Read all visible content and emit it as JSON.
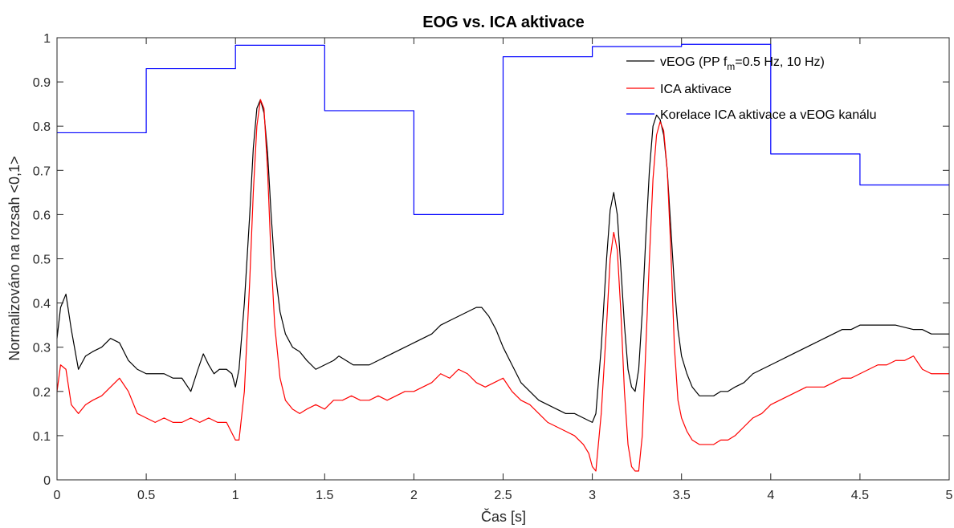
{
  "chart_data": {
    "type": "line",
    "title": "EOG vs. ICA aktivace",
    "xlabel": "Čas [s]",
    "ylabel": "Normalizováno na rozsah <0,1>",
    "xlim": [
      0,
      5
    ],
    "ylim": [
      0,
      1
    ],
    "xticks": [
      0,
      0.5,
      1,
      1.5,
      2,
      2.5,
      3,
      3.5,
      4,
      4.5,
      5
    ],
    "xtick_labels": [
      "0",
      "0.5",
      "1",
      "1.5",
      "2",
      "2.5",
      "3",
      "3.5",
      "4",
      "4.5",
      "5"
    ],
    "yticks": [
      0,
      0.1,
      0.2,
      0.3,
      0.4,
      0.5,
      0.6,
      0.7,
      0.8,
      0.9,
      1
    ],
    "ytick_labels": [
      "0",
      "0.1",
      "0.2",
      "0.3",
      "0.4",
      "0.5",
      "0.6",
      "0.7",
      "0.8",
      "0.9",
      "1"
    ],
    "grid": false,
    "legend_position": "top-right",
    "series": [
      {
        "name": "vEOG (PP f",
        "name_subscript": "m",
        "name_suffix": "=0.5 Hz, 10 Hz)",
        "color": "#000000",
        "style": "line",
        "x": [
          0,
          0.02,
          0.05,
          0.08,
          0.12,
          0.16,
          0.2,
          0.25,
          0.3,
          0.35,
          0.4,
          0.45,
          0.5,
          0.55,
          0.6,
          0.65,
          0.7,
          0.75,
          0.79,
          0.82,
          0.85,
          0.88,
          0.91,
          0.95,
          0.98,
          1.0,
          1.02,
          1.05,
          1.08,
          1.1,
          1.12,
          1.14,
          1.16,
          1.18,
          1.2,
          1.22,
          1.25,
          1.28,
          1.32,
          1.36,
          1.4,
          1.45,
          1.5,
          1.55,
          1.58,
          1.62,
          1.66,
          1.7,
          1.75,
          1.8,
          1.85,
          1.9,
          1.95,
          2.0,
          2.05,
          2.1,
          2.15,
          2.2,
          2.25,
          2.3,
          2.35,
          2.38,
          2.42,
          2.46,
          2.5,
          2.55,
          2.6,
          2.65,
          2.7,
          2.75,
          2.8,
          2.85,
          2.9,
          2.95,
          3.0,
          3.02,
          3.05,
          3.08,
          3.1,
          3.12,
          3.14,
          3.16,
          3.18,
          3.2,
          3.22,
          3.24,
          3.26,
          3.28,
          3.3,
          3.32,
          3.34,
          3.36,
          3.38,
          3.4,
          3.42,
          3.44,
          3.46,
          3.48,
          3.5,
          3.53,
          3.56,
          3.6,
          3.64,
          3.68,
          3.72,
          3.76,
          3.8,
          3.85,
          3.9,
          3.95,
          4.0,
          4.05,
          4.1,
          4.15,
          4.2,
          4.25,
          4.3,
          4.35,
          4.4,
          4.45,
          4.5,
          4.55,
          4.6,
          4.65,
          4.7,
          4.75,
          4.8,
          4.85,
          4.9,
          4.95,
          5.0
        ],
        "values": [
          0.32,
          0.39,
          0.42,
          0.34,
          0.25,
          0.28,
          0.29,
          0.3,
          0.32,
          0.31,
          0.27,
          0.25,
          0.24,
          0.24,
          0.24,
          0.23,
          0.23,
          0.2,
          0.25,
          0.285,
          0.26,
          0.24,
          0.25,
          0.25,
          0.24,
          0.21,
          0.25,
          0.4,
          0.6,
          0.75,
          0.84,
          0.86,
          0.83,
          0.74,
          0.6,
          0.48,
          0.38,
          0.33,
          0.3,
          0.29,
          0.27,
          0.25,
          0.26,
          0.27,
          0.28,
          0.27,
          0.26,
          0.26,
          0.26,
          0.27,
          0.28,
          0.29,
          0.3,
          0.31,
          0.32,
          0.33,
          0.35,
          0.36,
          0.37,
          0.38,
          0.39,
          0.39,
          0.37,
          0.34,
          0.3,
          0.26,
          0.22,
          0.2,
          0.18,
          0.17,
          0.16,
          0.15,
          0.15,
          0.14,
          0.13,
          0.15,
          0.3,
          0.5,
          0.61,
          0.65,
          0.6,
          0.48,
          0.35,
          0.25,
          0.21,
          0.2,
          0.25,
          0.38,
          0.55,
          0.7,
          0.8,
          0.825,
          0.815,
          0.78,
          0.7,
          0.57,
          0.44,
          0.34,
          0.28,
          0.24,
          0.21,
          0.19,
          0.19,
          0.19,
          0.2,
          0.2,
          0.21,
          0.22,
          0.24,
          0.25,
          0.26,
          0.27,
          0.28,
          0.29,
          0.3,
          0.31,
          0.32,
          0.33,
          0.34,
          0.34,
          0.35,
          0.35,
          0.35,
          0.35,
          0.35,
          0.345,
          0.34,
          0.34,
          0.33,
          0.33,
          0.33
        ]
      },
      {
        "name": "ICA aktivace",
        "color": "#ff0000",
        "style": "line",
        "x": [
          0,
          0.02,
          0.05,
          0.08,
          0.12,
          0.16,
          0.2,
          0.25,
          0.3,
          0.35,
          0.4,
          0.45,
          0.5,
          0.55,
          0.6,
          0.65,
          0.7,
          0.75,
          0.8,
          0.85,
          0.9,
          0.95,
          1.0,
          1.02,
          1.05,
          1.08,
          1.1,
          1.12,
          1.14,
          1.16,
          1.18,
          1.2,
          1.22,
          1.25,
          1.28,
          1.32,
          1.36,
          1.4,
          1.45,
          1.5,
          1.55,
          1.6,
          1.65,
          1.7,
          1.75,
          1.8,
          1.85,
          1.9,
          1.95,
          2.0,
          2.05,
          2.1,
          2.15,
          2.2,
          2.25,
          2.3,
          2.35,
          2.4,
          2.45,
          2.5,
          2.55,
          2.6,
          2.65,
          2.7,
          2.75,
          2.8,
          2.85,
          2.9,
          2.95,
          2.98,
          3.0,
          3.02,
          3.05,
          3.08,
          3.1,
          3.12,
          3.14,
          3.16,
          3.18,
          3.2,
          3.22,
          3.24,
          3.26,
          3.28,
          3.3,
          3.32,
          3.34,
          3.36,
          3.38,
          3.4,
          3.42,
          3.44,
          3.46,
          3.48,
          3.5,
          3.53,
          3.56,
          3.6,
          3.64,
          3.68,
          3.72,
          3.76,
          3.8,
          3.85,
          3.9,
          3.95,
          4.0,
          4.05,
          4.1,
          4.15,
          4.2,
          4.25,
          4.3,
          4.35,
          4.4,
          4.45,
          4.5,
          4.55,
          4.6,
          4.65,
          4.7,
          4.75,
          4.8,
          4.85,
          4.9,
          4.95,
          5.0
        ],
        "values": [
          0.2,
          0.26,
          0.25,
          0.17,
          0.15,
          0.17,
          0.18,
          0.19,
          0.21,
          0.23,
          0.2,
          0.15,
          0.14,
          0.13,
          0.14,
          0.13,
          0.13,
          0.14,
          0.13,
          0.14,
          0.13,
          0.13,
          0.09,
          0.09,
          0.2,
          0.45,
          0.65,
          0.8,
          0.86,
          0.84,
          0.7,
          0.5,
          0.35,
          0.23,
          0.18,
          0.16,
          0.15,
          0.16,
          0.17,
          0.16,
          0.18,
          0.18,
          0.19,
          0.18,
          0.18,
          0.19,
          0.18,
          0.19,
          0.2,
          0.2,
          0.21,
          0.22,
          0.24,
          0.23,
          0.25,
          0.24,
          0.22,
          0.21,
          0.22,
          0.23,
          0.2,
          0.18,
          0.17,
          0.15,
          0.13,
          0.12,
          0.11,
          0.1,
          0.08,
          0.06,
          0.03,
          0.02,
          0.15,
          0.35,
          0.5,
          0.56,
          0.52,
          0.38,
          0.2,
          0.08,
          0.03,
          0.02,
          0.02,
          0.1,
          0.3,
          0.5,
          0.68,
          0.78,
          0.81,
          0.79,
          0.7,
          0.52,
          0.3,
          0.18,
          0.14,
          0.11,
          0.09,
          0.08,
          0.08,
          0.08,
          0.09,
          0.09,
          0.1,
          0.12,
          0.14,
          0.15,
          0.17,
          0.18,
          0.19,
          0.2,
          0.21,
          0.21,
          0.21,
          0.22,
          0.23,
          0.23,
          0.24,
          0.25,
          0.26,
          0.26,
          0.27,
          0.27,
          0.28,
          0.25,
          0.24,
          0.24,
          0.24
        ]
      },
      {
        "name": "Korelace ICA aktivace a vEOG kanálu",
        "color": "#0000ff",
        "style": "step",
        "x": [
          0,
          0.5,
          1,
          1.5,
          2,
          2.5,
          3,
          3.5,
          4,
          4.5,
          5
        ],
        "values": [
          0.785,
          0.93,
          0.983,
          0.835,
          0.6,
          0.957,
          0.98,
          0.985,
          0.737,
          0.667,
          0.667
        ]
      }
    ]
  }
}
